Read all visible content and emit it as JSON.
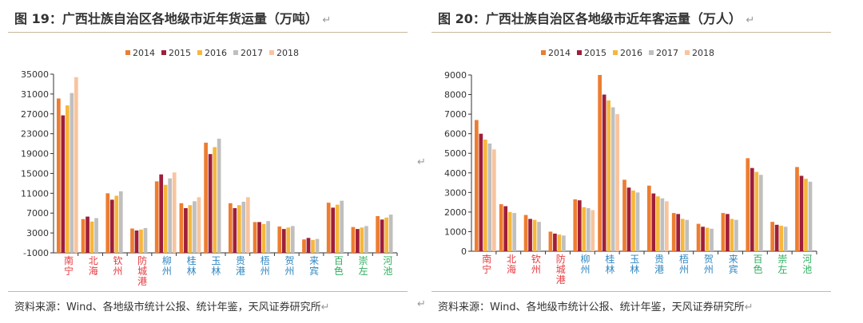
{
  "colors": {
    "2014": "#ED7D31",
    "2015": "#9E1F3A",
    "2016": "#F6B73C",
    "2017": "#BFBFBF",
    "2018": "#F8C49E",
    "red": "#E8383D",
    "blue": "#2E86C1",
    "green": "#2EAF5E"
  },
  "return_mark": "↵",
  "chart_data": [
    {
      "type": "bar",
      "title": "图 19：广西壮族自治区各地级市近年货运量（万吨）",
      "source": "资料来源：Wind、各地级市统计公报、统计年鉴，天风证券研究所",
      "ylim": [
        -1000,
        35000
      ],
      "yticks": [
        "-1000",
        "3000",
        "7000",
        "11000",
        "15000",
        "19000",
        "23000",
        "27000",
        "31000",
        "35000"
      ],
      "legend_position": "top-center",
      "categories": [
        "南宁",
        "北海",
        "钦州",
        "防城港",
        "柳州",
        "桂林",
        "玉林",
        "贵港",
        "梧州",
        "贺州",
        "来宾",
        "百色",
        "崇左",
        "河池"
      ],
      "category_groups": [
        "red",
        "red",
        "red",
        "red",
        "blue",
        "blue",
        "blue",
        "blue",
        "blue",
        "blue",
        "blue",
        "green",
        "green",
        "green"
      ],
      "series": [
        {
          "name": "2014",
          "values": [
            30100,
            5800,
            11000,
            3900,
            13400,
            9000,
            21200,
            9000,
            5200,
            4300,
            1700,
            9100,
            4200,
            6400
          ]
        },
        {
          "name": "2015",
          "values": [
            26700,
            6300,
            9700,
            3500,
            14800,
            8000,
            18900,
            8000,
            5200,
            3800,
            2000,
            8100,
            3800,
            5700
          ]
        },
        {
          "name": "2016",
          "values": [
            28700,
            5300,
            10500,
            3700,
            12700,
            8600,
            20300,
            8600,
            4800,
            4100,
            1600,
            8700,
            4100,
            6100
          ]
        },
        {
          "name": "2017",
          "values": [
            31200,
            6000,
            11400,
            4000,
            14000,
            9400,
            22000,
            9300,
            5400,
            4400,
            1800,
            9500,
            4400,
            6700
          ]
        },
        {
          "name": "2018",
          "values": [
            34400,
            null,
            null,
            null,
            15200,
            10200,
            null,
            10200,
            null,
            null,
            null,
            null,
            null,
            null
          ]
        }
      ]
    },
    {
      "type": "bar",
      "title": "图 20：广西壮族自治区各地级市近年客运量（万人）",
      "source": "资料来源：Wind、各地级市统计公报、统计年鉴，天风证券研究所",
      "ylim": [
        0,
        9000
      ],
      "yticks": [
        "0",
        "1000",
        "2000",
        "3000",
        "4000",
        "5000",
        "6000",
        "7000",
        "8000",
        "9000"
      ],
      "legend_position": "top-center",
      "categories": [
        "南宁",
        "北海",
        "钦州",
        "防城港",
        "柳州",
        "桂林",
        "玉林",
        "贵港",
        "梧州",
        "贺州",
        "来宾",
        "百色",
        "崇左",
        "河池"
      ],
      "category_groups": [
        "red",
        "red",
        "red",
        "red",
        "blue",
        "blue",
        "blue",
        "blue",
        "blue",
        "blue",
        "blue",
        "green",
        "green",
        "green"
      ],
      "series": [
        {
          "name": "2014",
          "values": [
            6700,
            2400,
            1850,
            1000,
            2650,
            9000,
            3650,
            3350,
            1950,
            1400,
            1950,
            4750,
            1500,
            4300
          ]
        },
        {
          "name": "2015",
          "values": [
            6000,
            2300,
            1650,
            900,
            2600,
            8000,
            3250,
            2950,
            1900,
            1250,
            1900,
            4250,
            1350,
            3850
          ]
        },
        {
          "name": "2016",
          "values": [
            5700,
            2000,
            1600,
            850,
            2250,
            7700,
            3100,
            2800,
            1650,
            1200,
            1650,
            4050,
            1300,
            3700
          ]
        },
        {
          "name": "2017",
          "values": [
            5500,
            1950,
            1500,
            800,
            2200,
            7350,
            3000,
            2700,
            1600,
            1150,
            1600,
            3900,
            1250,
            3550
          ]
        },
        {
          "name": "2018",
          "values": [
            5200,
            null,
            null,
            null,
            2100,
            7000,
            null,
            2550,
            null,
            null,
            null,
            null,
            null,
            null
          ]
        }
      ]
    }
  ]
}
